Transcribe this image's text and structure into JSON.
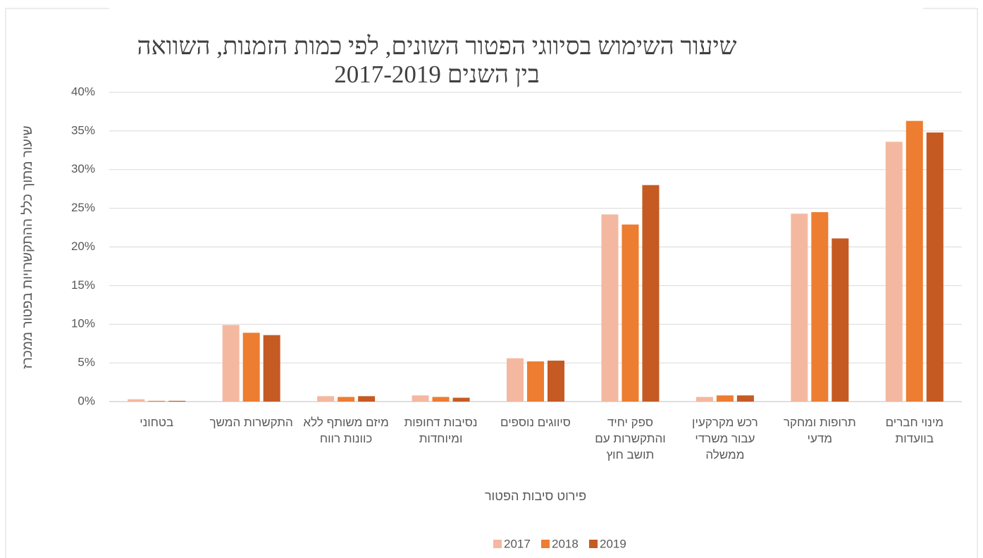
{
  "chart_data": {
    "type": "bar",
    "title": "שיעור השימוש בסיווגי הפטור השונים, לפי כמות הזמנות, השוואה בין השנים 2017-2019",
    "x_label": "פירוט סיבות הפטור",
    "y_label": "שיעור מתוך כלל ההתקשרויות בפטור ממכרז",
    "categories": [
      "בטחוני",
      "התקשרות המשך",
      "מיזם משותף ללא כוונות רווח",
      "נסיבות דחופות ומיוחדות",
      "סיווגים נוספים",
      "ספק יחיד והתקשרות עם תושב חוץ",
      "רכש מקרקעין עבור משרדי ממשלה",
      "תרופות ומחקר מדעי",
      "מינוי חברים בוועדות"
    ],
    "series": [
      {
        "name": "2017",
        "color": "#f4b8a0",
        "values": [
          0.3,
          9.9,
          0.7,
          0.8,
          5.6,
          24.2,
          0.6,
          24.3,
          33.6
        ]
      },
      {
        "name": "2018",
        "color": "#ed7d31",
        "values": [
          0.1,
          8.9,
          0.6,
          0.6,
          5.2,
          22.9,
          0.8,
          24.5,
          36.3
        ]
      },
      {
        "name": "2019",
        "color": "#c55a23",
        "values": [
          0.1,
          8.6,
          0.7,
          0.5,
          5.3,
          28.0,
          0.8,
          21.1,
          34.8
        ]
      }
    ],
    "ylim": [
      0,
      40
    ],
    "yticks": [
      {
        "value": 0,
        "label": "0%"
      },
      {
        "value": 5,
        "label": "5%"
      },
      {
        "value": 10,
        "label": "10%"
      },
      {
        "value": 15,
        "label": "15%"
      },
      {
        "value": 20,
        "label": "20%"
      },
      {
        "value": 25,
        "label": "25%"
      },
      {
        "value": 30,
        "label": "30%"
      },
      {
        "value": 35,
        "label": "35%"
      },
      {
        "value": 40,
        "label": "40%"
      }
    ],
    "grid": true,
    "legend": "bottom"
  }
}
